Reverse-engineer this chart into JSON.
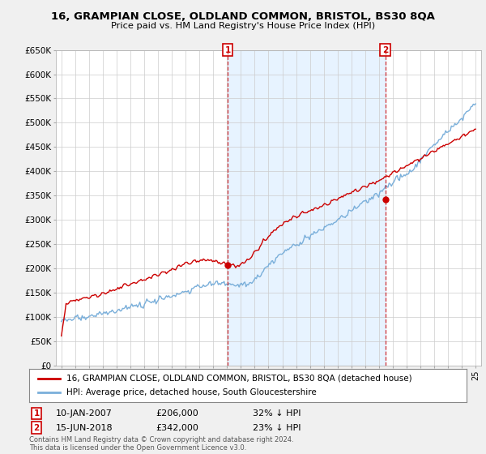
{
  "title": "16, GRAMPIAN CLOSE, OLDLAND COMMON, BRISTOL, BS30 8QA",
  "subtitle": "Price paid vs. HM Land Registry's House Price Index (HPI)",
  "ylabel_ticks": [
    "£0",
    "£50K",
    "£100K",
    "£150K",
    "£200K",
    "£250K",
    "£300K",
    "£350K",
    "£400K",
    "£450K",
    "£500K",
    "£550K",
    "£600K",
    "£650K"
  ],
  "ytick_values": [
    0,
    50000,
    100000,
    150000,
    200000,
    250000,
    300000,
    350000,
    400000,
    450000,
    500000,
    550000,
    600000,
    650000
  ],
  "hpi_color": "#7aafda",
  "hpi_fill_color": "#ddeeff",
  "price_color": "#cc0000",
  "annotation_box_color": "#cc0000",
  "background_color": "#f0f0f0",
  "plot_bg_color": "#ffffff",
  "legend_label_price": "16, GRAMPIAN CLOSE, OLDLAND COMMON, BRISTOL, BS30 8QA (detached house)",
  "legend_label_hpi": "HPI: Average price, detached house, South Gloucestershire",
  "annotation1_label": "1",
  "annotation1_date": "10-JAN-2007",
  "annotation1_price": "£206,000",
  "annotation1_hpi": "32% ↓ HPI",
  "annotation2_label": "2",
  "annotation2_date": "15-JUN-2018",
  "annotation2_price": "£342,000",
  "annotation2_hpi": "23% ↓ HPI",
  "footer": "Contains HM Land Registry data © Crown copyright and database right 2024.\nThis data is licensed under the Open Government Licence v3.0.",
  "sale1_year": 2007.04,
  "sale2_year": 2018.46,
  "sale1_price": 206000,
  "sale2_price": 342000
}
